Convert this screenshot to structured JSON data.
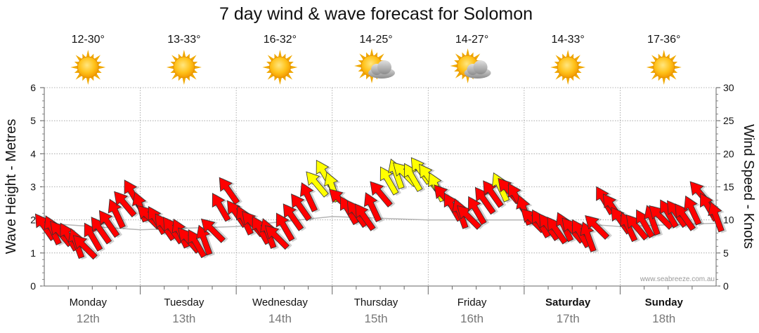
{
  "chart_data": {
    "type": "line",
    "title": "7 day wind & wave forecast for Solomon",
    "ylabel_left": "Wave Height - Metres",
    "ylabel_right": "Wind Speed - Knots",
    "ylim_left": [
      0,
      6
    ],
    "ylim_right": [
      0,
      30
    ],
    "yticks_left": [
      "0",
      "1",
      "2",
      "3",
      "4",
      "5",
      "6"
    ],
    "yticks_right": [
      "0",
      "5",
      "10",
      "15",
      "20",
      "25",
      "30"
    ],
    "grid": true,
    "days": [
      {
        "day": "Monday",
        "date": "12th",
        "temp": "12-30°",
        "icon": "sun-icon",
        "bold": false
      },
      {
        "day": "Tuesday",
        "date": "13th",
        "temp": "13-33°",
        "icon": "sun-icon",
        "bold": false
      },
      {
        "day": "Wednesday",
        "date": "14th",
        "temp": "16-32°",
        "icon": "sun-icon",
        "bold": false
      },
      {
        "day": "Thursday",
        "date": "15th",
        "temp": "14-25°",
        "icon": "sun-cloud-icon",
        "bold": false
      },
      {
        "day": "Friday",
        "date": "16th",
        "temp": "14-27°",
        "icon": "sun-cloud-icon",
        "bold": false
      },
      {
        "day": "Saturday",
        "date": "17th",
        "temp": "14-33°",
        "icon": "sun-icon",
        "bold": true
      },
      {
        "day": "Sunday",
        "date": "18th",
        "temp": "17-36°",
        "icon": "sun-icon",
        "bold": true
      }
    ],
    "series": [
      {
        "name": "Wave Height",
        "unit": "m",
        "x_hours": [
          0,
          24,
          48,
          72,
          96,
          120,
          144,
          168
        ],
        "values": [
          1.9,
          1.7,
          1.8,
          2.1,
          2.0,
          2.0,
          1.8,
          1.9
        ]
      },
      {
        "name": "Wind Speed",
        "unit": "knots",
        "x_hours": [
          0,
          2,
          4,
          6,
          8,
          10,
          12,
          14,
          16,
          18,
          20,
          22,
          24,
          26,
          28,
          30,
          32,
          34,
          36,
          38,
          40,
          42,
          44,
          46,
          48,
          50,
          52,
          54,
          56,
          58,
          60,
          62,
          64,
          66,
          68,
          70,
          72,
          74,
          76,
          78,
          80,
          82,
          84,
          86,
          88,
          90,
          92,
          94,
          96,
          98,
          100,
          102,
          104,
          106,
          108,
          110,
          112,
          114,
          116,
          118,
          120,
          122,
          124,
          126,
          128,
          130,
          132,
          134,
          136,
          138,
          140,
          142,
          144,
          146,
          148,
          150,
          152,
          154,
          156,
          158,
          160,
          162,
          164,
          166,
          168
        ],
        "values": [
          9,
          8.5,
          8,
          7.5,
          6.5,
          6,
          7.5,
          8.5,
          9.5,
          11,
          12.5,
          14,
          12,
          10.5,
          10,
          9,
          8.5,
          8,
          7,
          6.5,
          7,
          8.5,
          12,
          14.5,
          11,
          10,
          9.5,
          8.5,
          8,
          7.5,
          9,
          10.5,
          12,
          13.5,
          15.5,
          17,
          15,
          13,
          11.5,
          11,
          10.5,
          12,
          14,
          16,
          17,
          17,
          16.5,
          17.5,
          16.5,
          15,
          13.5,
          12,
          11,
          10.5,
          11.5,
          13,
          14,
          15,
          14.5,
          13.5,
          11.5,
          10,
          9.5,
          9,
          8.5,
          9,
          8.5,
          8,
          7.5,
          9,
          13,
          12,
          10,
          9,
          9,
          9.5,
          10,
          10.5,
          11,
          11,
          10.5,
          11.5,
          14,
          12,
          10.5
        ],
        "over_15kn_color": "#ffff00",
        "under_15kn_color": "#ff0000"
      }
    ]
  },
  "credit": "www.seabreeze.com.au"
}
